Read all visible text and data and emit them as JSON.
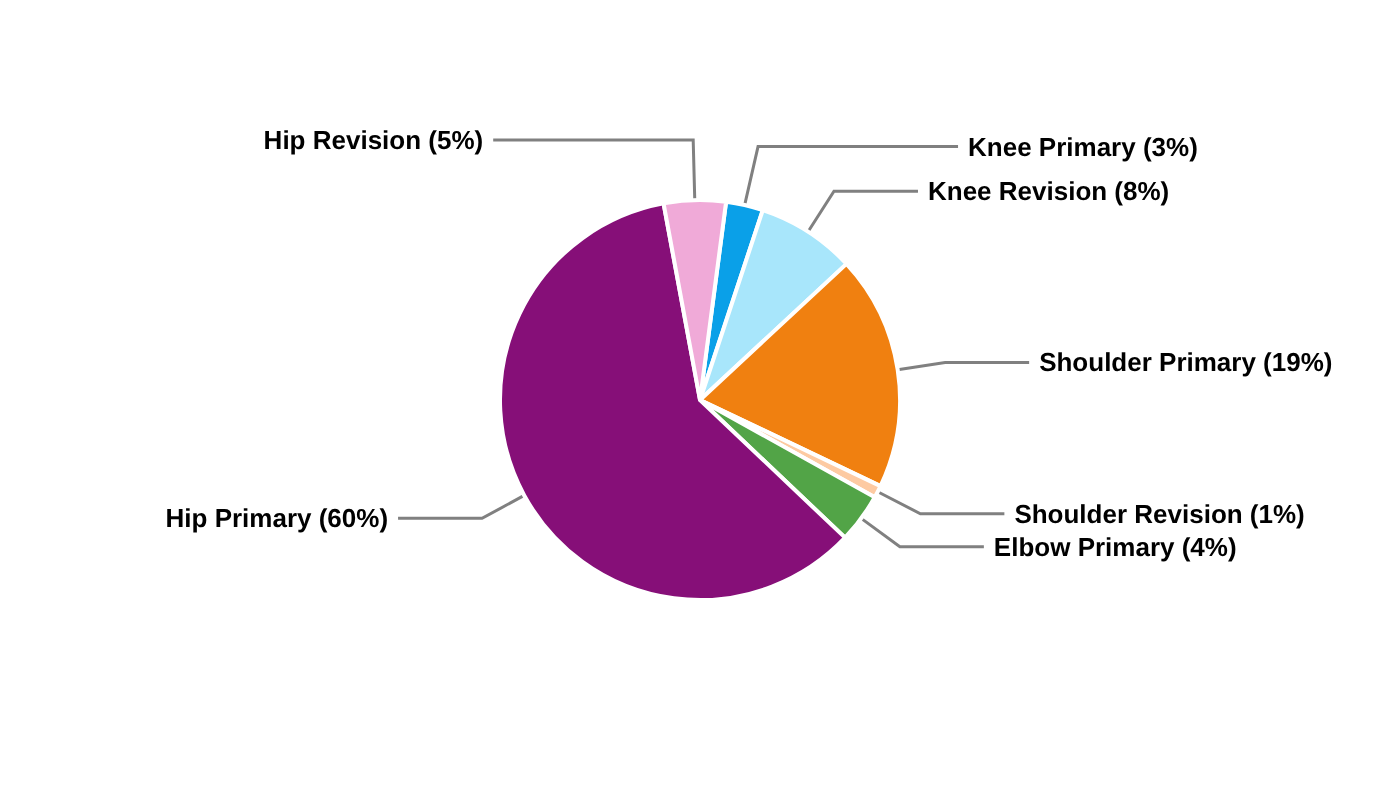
{
  "chart_data": {
    "type": "pie",
    "categories": [
      "Knee Primary",
      "Knee Revision",
      "Shoulder Primary",
      "Shoulder Revision",
      "Elbow Primary",
      "Hip Primary",
      "Hip Revision"
    ],
    "values": [
      3,
      8,
      19,
      1,
      4,
      60,
      5
    ],
    "value_labels": [
      "(3%)",
      "(8%)",
      "(19%)",
      "(1%)",
      "(4%)",
      "(60%)",
      "(5%)"
    ],
    "colors": [
      "#0aa0e8",
      "#a8e6fb",
      "#f08010",
      "#fdcaa2",
      "#52a447",
      "#860f78",
      "#f0aad8"
    ],
    "legend": false
  }
}
